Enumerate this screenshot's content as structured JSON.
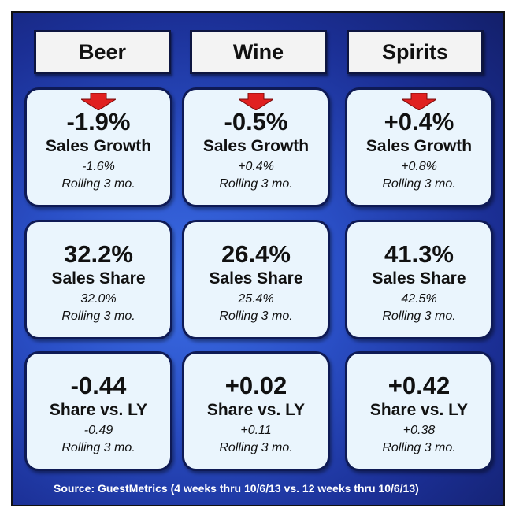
{
  "headers": [
    "Beer",
    "Wine",
    "Spirits"
  ],
  "rows": [
    {
      "label": "Sales Growth",
      "cells": [
        {
          "value": "-1.9%",
          "sub": "-1.6%",
          "arrow": "down"
        },
        {
          "value": "-0.5%",
          "sub": "+0.4%",
          "arrow": "down"
        },
        {
          "value": "+0.4%",
          "sub": "+0.8%",
          "arrow": "down"
        }
      ]
    },
    {
      "label": "Sales Share",
      "cells": [
        {
          "value": "32.2%",
          "sub": "32.0%"
        },
        {
          "value": "26.4%",
          "sub": "25.4%"
        },
        {
          "value": "41.3%",
          "sub": "42.5%"
        }
      ]
    },
    {
      "label": "Share vs. LY",
      "cells": [
        {
          "value": "-0.44",
          "sub": "-0.49"
        },
        {
          "value": "+0.02",
          "sub": "+0.11"
        },
        {
          "value": "+0.42",
          "sub": "+0.38"
        }
      ]
    }
  ],
  "rolling_label": "Rolling 3 mo.",
  "source": "Source:  GuestMetrics (4 weeks thru 10/6/13 vs. 12 weeks thru 10/6/13)",
  "colors": {
    "frame_bg": "#2a4fc6",
    "card_bg": "#eaf5fd",
    "header_bg": "#f3f3f3",
    "arrow": "#e02020",
    "border": "#0e1a55"
  }
}
